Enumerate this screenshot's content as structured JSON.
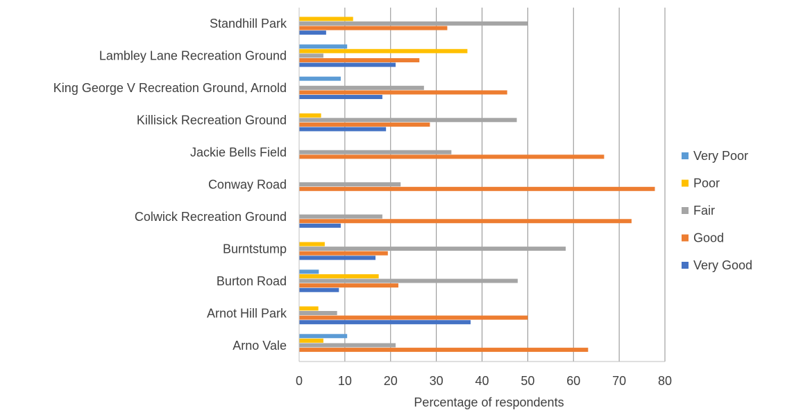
{
  "chart_data": {
    "type": "bar",
    "orientation": "horizontal",
    "title": "",
    "xlabel": "Percentage of respondents",
    "ylabel": "",
    "xlim": [
      0,
      80
    ],
    "xticks": [
      "0",
      "10",
      "20",
      "30",
      "40",
      "50",
      "60",
      "70",
      "80"
    ],
    "grid": "vertical",
    "legend": "right",
    "categories": [
      "Standhill Park",
      "Lambley Lane Recreation Ground",
      "King George V Recreation Ground, Arnold",
      "Killisick Recreation Ground",
      "Jackie Bells Field",
      "Conway Road",
      "Colwick Recreation Ground",
      "Burntstump",
      "Burton Road",
      "Arnot Hill Park",
      "Arno Vale"
    ],
    "series": [
      {
        "name": "Very Poor",
        "color": "#5B9BD5",
        "values": [
          0,
          10.5,
          9.1,
          0,
          0,
          0,
          0,
          0,
          4.3,
          0,
          10.5
        ]
      },
      {
        "name": "Poor",
        "color": "#FFC000",
        "values": [
          11.8,
          36.8,
          0,
          4.8,
          0,
          0,
          0,
          5.6,
          17.4,
          4.2,
          5.3
        ]
      },
      {
        "name": "Fair",
        "color": "#A5A5A5",
        "values": [
          50,
          5.3,
          27.3,
          47.6,
          33.3,
          22.2,
          18.2,
          58.3,
          47.8,
          8.3,
          21.1
        ]
      },
      {
        "name": "Good",
        "color": "#ED7D31",
        "values": [
          32.4,
          26.3,
          45.5,
          28.6,
          66.7,
          77.8,
          72.7,
          19.4,
          21.7,
          50,
          63.2
        ]
      },
      {
        "name": "Very Good",
        "color": "#4472C4",
        "values": [
          5.9,
          21.1,
          18.2,
          19.0,
          0,
          0,
          9.1,
          16.7,
          8.7,
          37.5,
          0
        ]
      }
    ],
    "legend_order": [
      "Very Poor",
      "Poor",
      "Fair",
      "Good",
      "Very Good"
    ]
  }
}
